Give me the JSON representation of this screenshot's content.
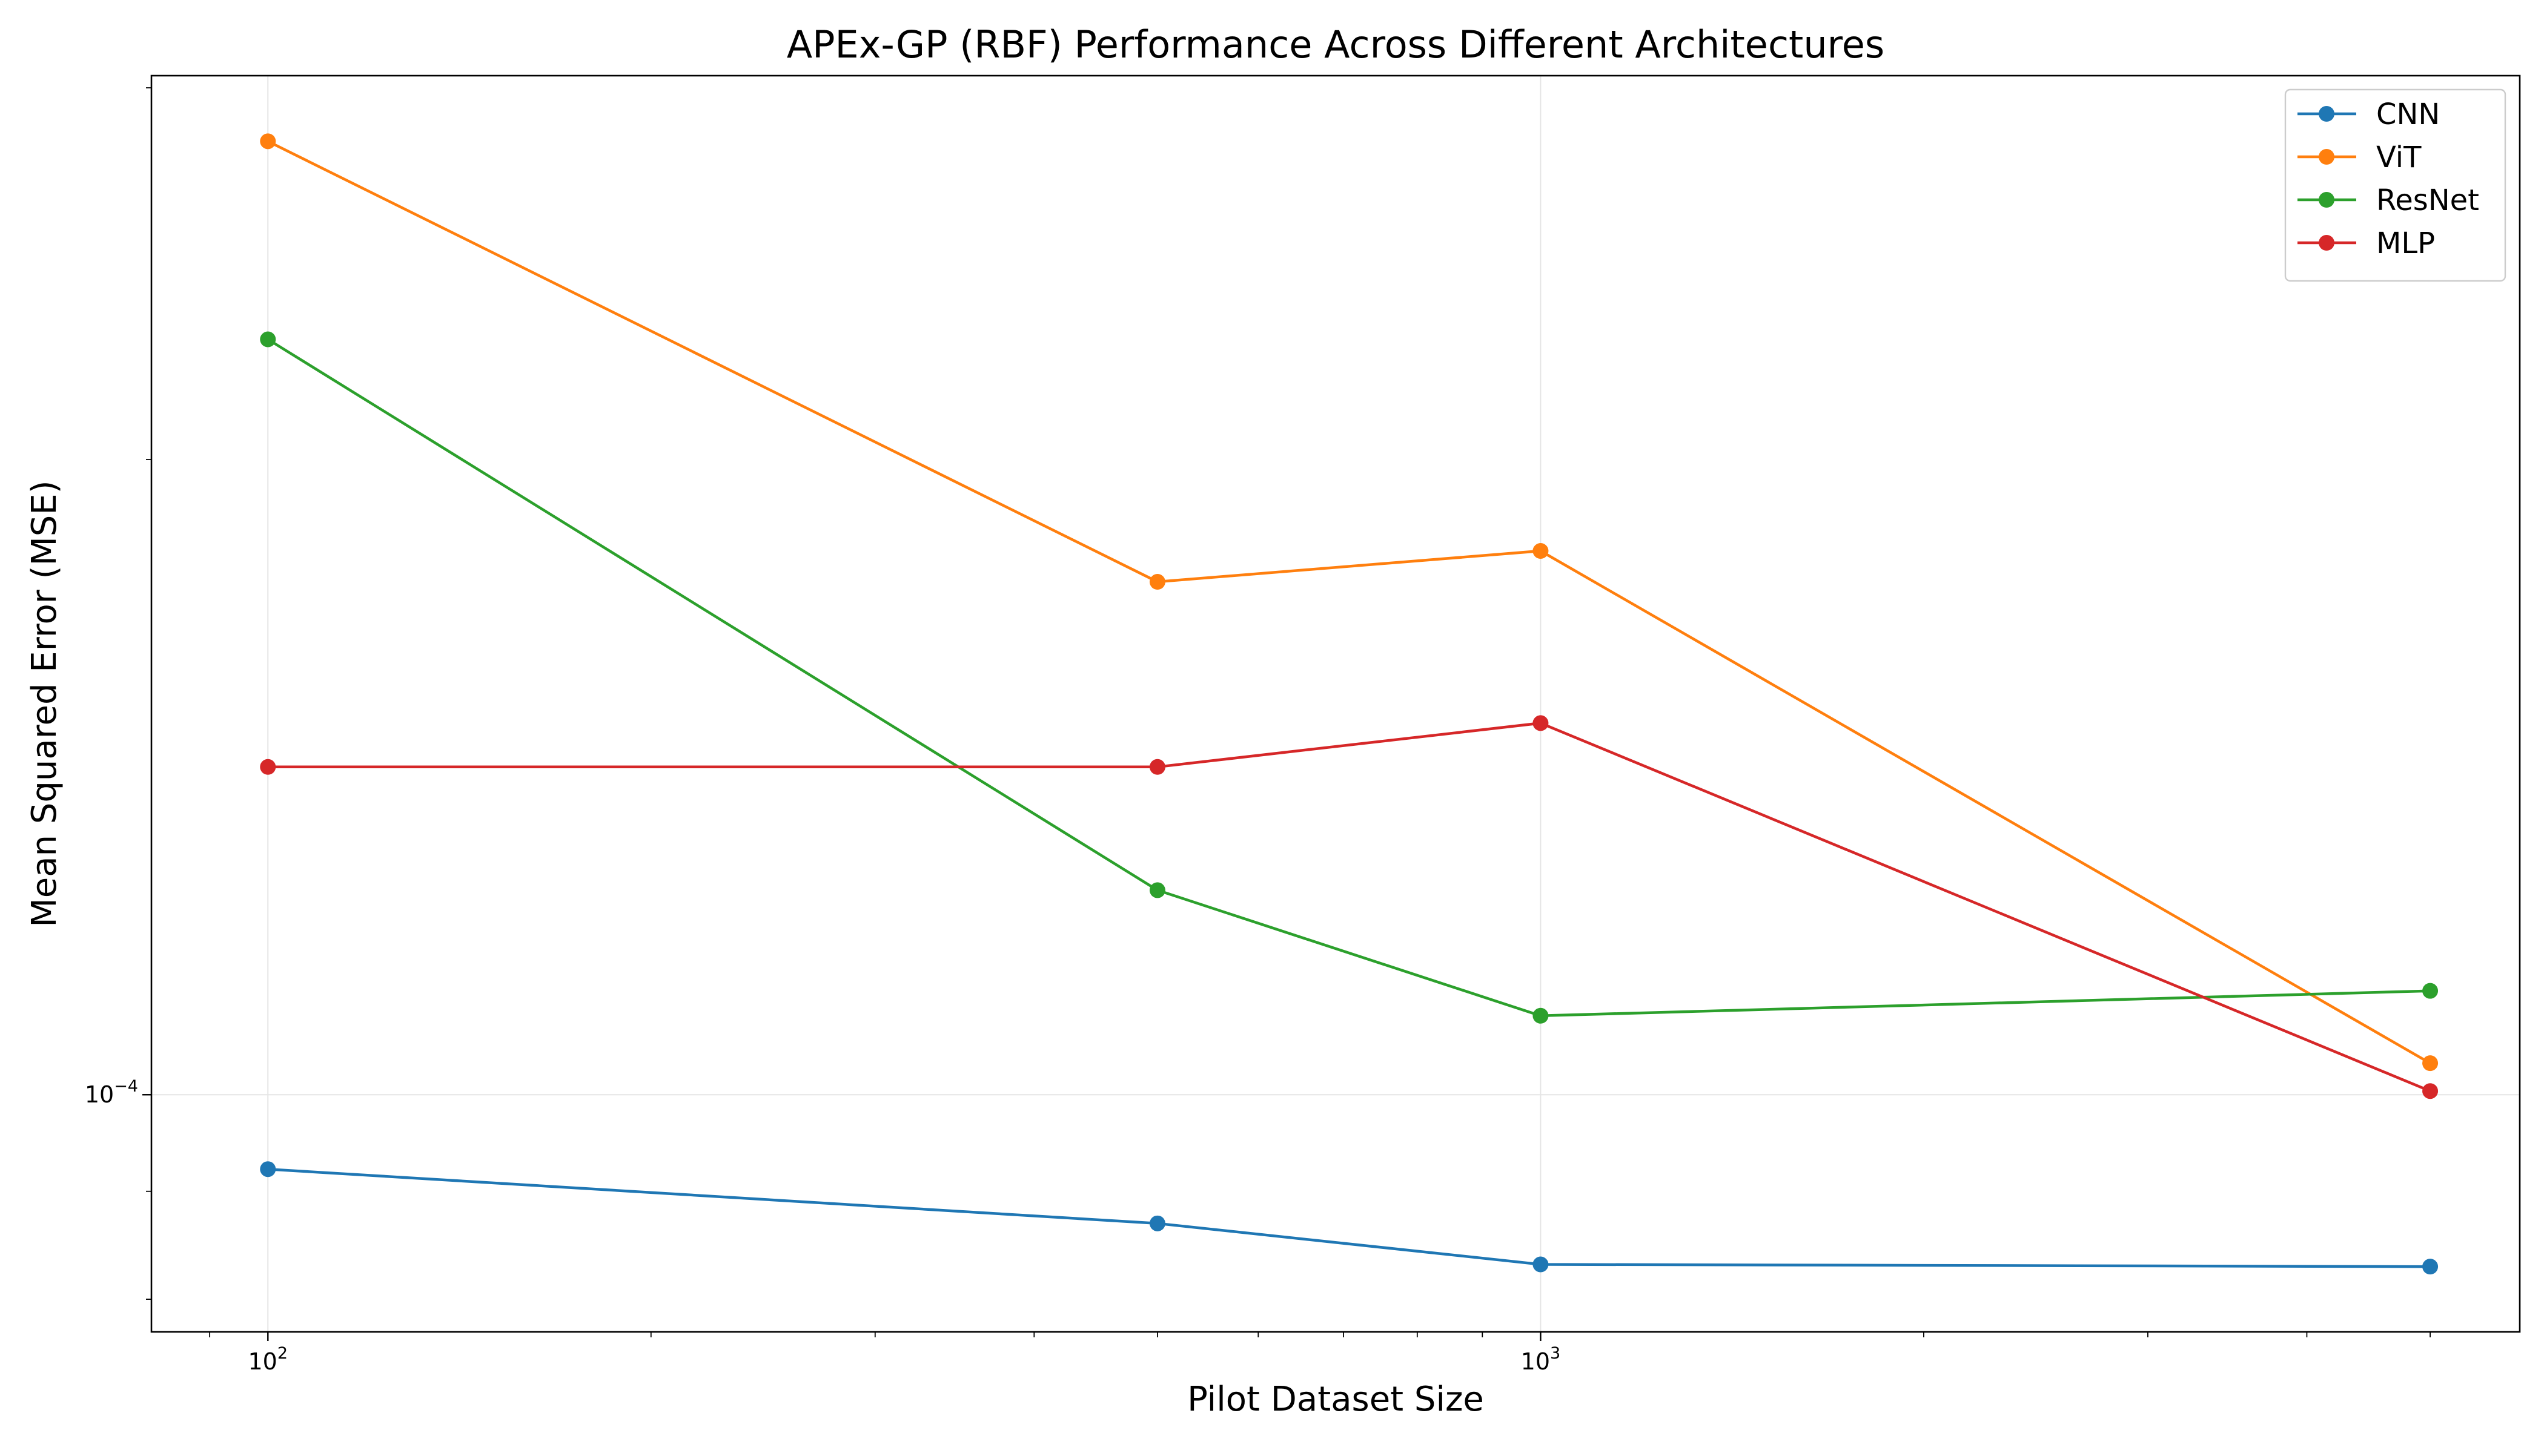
{
  "chart_data": {
    "type": "line",
    "title": "APEx-GP (RBF) Performance Across Different Architectures",
    "xlabel": "Pilot Dataset Size",
    "ylabel": "Mean Squared Error (MSE)",
    "xscale": "log",
    "yscale": "log",
    "xlim": [
      81,
      5880
    ],
    "ylim": [
      7.72e-05,
      0.000304
    ],
    "x": [
      100,
      500,
      1000,
      5000
    ],
    "x_tick_labels": [
      {
        "value": 100,
        "base": "10",
        "exp": "2"
      },
      {
        "value": 1000,
        "base": "10",
        "exp": "3"
      }
    ],
    "y_tick_labels": [
      {
        "value": 0.0001,
        "base": "10",
        "exp": "−4"
      }
    ],
    "grid": true,
    "legend_position": "top-right",
    "series": [
      {
        "name": "CNN",
        "color": "#1f77b4",
        "values": [
          9.22e-05,
          8.69e-05,
          8.31e-05,
          8.29e-05
        ]
      },
      {
        "name": "ViT",
        "color": "#ff7f0e",
        "values": [
          0.000283,
          0.000175,
          0.000181,
          0.0001035
        ]
      },
      {
        "name": "ResNet",
        "color": "#2ca02c",
        "values": [
          0.000228,
          0.000125,
          0.000109,
          0.000112
        ]
      },
      {
        "name": "MLP",
        "color": "#d62728",
        "values": [
          0.000143,
          0.000143,
          0.00015,
          0.0001004
        ]
      }
    ]
  }
}
